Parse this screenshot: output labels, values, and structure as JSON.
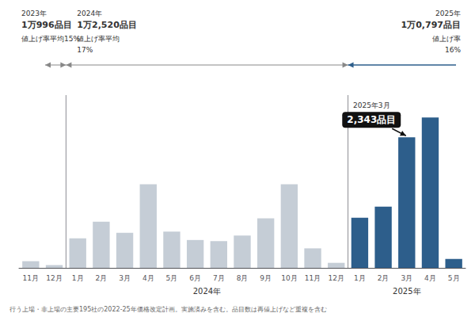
{
  "chart_data": {
    "type": "bar",
    "categories": [
      "11月",
      "12月",
      "1月",
      "2月",
      "3月",
      "4月",
      "5月",
      "6月",
      "7月",
      "8月",
      "9月",
      "10月",
      "11月",
      "12月",
      "1月",
      "2月",
      "3月",
      "4月",
      "5月"
    ],
    "values": [
      120,
      50,
      530,
      830,
      630,
      1500,
      650,
      500,
      480,
      580,
      890,
      1500,
      350,
      90,
      900,
      1100,
      2343,
      2700,
      160
    ],
    "colors": [
      "#c5cdd6",
      "#c5cdd6",
      "#c5cdd6",
      "#c5cdd6",
      "#c5cdd6",
      "#c5cdd6",
      "#c5cdd6",
      "#c5cdd6",
      "#c5cdd6",
      "#c5cdd6",
      "#c5cdd6",
      "#c5cdd6",
      "#c5cdd6",
      "#c5cdd6",
      "#2d5e8b",
      "#2d5e8b",
      "#2d5e8b",
      "#2d5e8b",
      "#2d5e8b"
    ],
    "ylim": [
      0,
      3100
    ],
    "grid": false,
    "tick_labels": "x",
    "annotations": [
      {
        "text": "2,343品目",
        "index": 16,
        "color": "#111111"
      },
      {
        "text": "2025年3月"
      },
      {
        "text": "2024年"
      },
      {
        "text": "2025年"
      },
      {
        "lines": [
          "2023年",
          "1万996品目",
          "値上げ率平均15%"
        ],
        "color": "#888888"
      },
      {
        "lines": [
          "2024年",
          "1万2,520品目",
          "値上げ率平均",
          "17%"
        ],
        "color": "#888888"
      },
      {
        "lines": [
          "2025年",
          "1万0,797品目",
          "値上げ率",
          "16%"
        ],
        "color": "#2d5e8b"
      },
      {
        "text": "行う上場・非上場の主要195社の2022-25年価格改定計画。実施済みを含む。品目数は再値上げなど重複を含む"
      }
    ]
  }
}
